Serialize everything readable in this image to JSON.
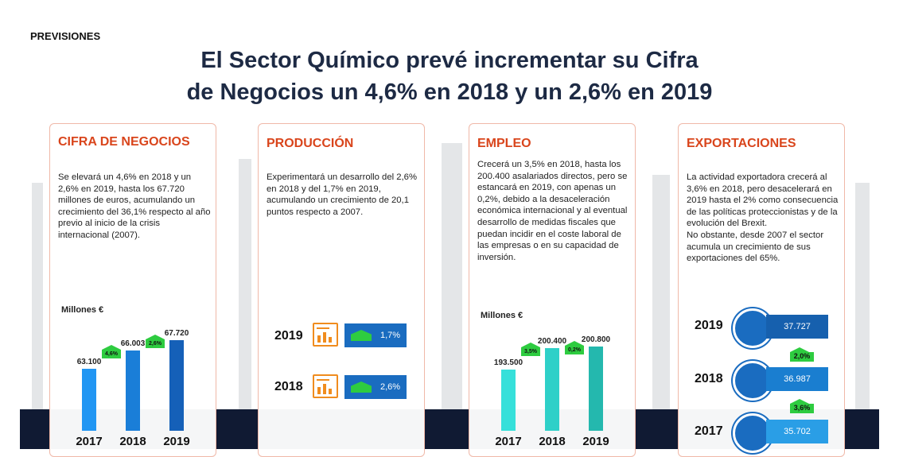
{
  "header": {
    "section": "PREVISIONES",
    "title_line1": "El Sector Químico prevé incrementar su Cifra",
    "title_line2": "de Negocios un 4,6% en 2018 y un 2,6% en 2019"
  },
  "colors": {
    "accent": "#d9451c",
    "bar_blue": "#1a6cc0",
    "bar_teal": "#2dd4c8",
    "growth_green": "#2ecc40",
    "icon_orange": "#f08c1e",
    "navy": "#101a33"
  },
  "cards": {
    "cifra": {
      "title": "CIFRA DE NEGOCIOS",
      "text": "Se elevará un 4,6% en 2018 y un 2,6% en 2019, hasta los 67.720 millones de euros, acumulando un crecimiento del 36,1% respecto al año previo al inicio de la crisis internacional (2007).",
      "unit": "Millones €"
    },
    "produccion": {
      "title": "PRODUCCIÓN",
      "text": "Experimentará un desarrollo del 2,6% en 2018 y del 1,7% en 2019, acumulando un crecimiento de 20,1 puntos respecto a 2007.",
      "rows": [
        {
          "year": "2019",
          "growth": "1,7%",
          "icon": "bar-chart-icon"
        },
        {
          "year": "2018",
          "growth": "2,6%",
          "icon": "bar-chart-icon"
        }
      ]
    },
    "empleo": {
      "title": "EMPLEO",
      "text": "Crecerá un 3,5% en 2018, hasta los 200.400 asalariados directos, pero se estancará en 2019, con apenas un 0,2%, debido a la desaceleración económica internacional y al eventual desarrollo de medidas fiscales que puedan incidir en el coste laboral de las empresas o en su capacidad de inversión.",
      "unit": "Millones €"
    },
    "exportaciones": {
      "title": "EXPORTACIONES",
      "text": "La actividad exportadora crecerá al 3,6% en 2018, pero desacelerará en 2019 hasta el 2% como consecuencia de las políticas proteccionistas y de la evolución del Brexit.\nNo obstante, desde 2007 el sector acumula un crecimiento de sus exportaciones del 65%.",
      "rows": [
        {
          "year": "2019",
          "value": "37.727",
          "icon": "globe-icon"
        },
        {
          "year": "2018",
          "value": "36.987",
          "icon": "globe-icon"
        },
        {
          "year": "2017",
          "value": "35.702",
          "icon": "globe-icon"
        }
      ],
      "growth": [
        "2,0%",
        "3,6%"
      ]
    }
  },
  "chart_data": [
    {
      "type": "bar",
      "ylabel": "Millones €",
      "categories": [
        "2017",
        "2018",
        "2019"
      ],
      "values": [
        63100,
        66003,
        67720
      ],
      "value_labels": [
        "63.100",
        "66.003",
        "67.720"
      ],
      "growth_labels": [
        "4,6%",
        "2,6%"
      ]
    },
    {
      "type": "bar",
      "ylabel": "Millones €",
      "categories": [
        "2017",
        "2018",
        "2019"
      ],
      "values": [
        193500,
        200400,
        200800
      ],
      "value_labels": [
        "193.500",
        "200.400",
        "200.800"
      ],
      "growth_labels": [
        "3,5%",
        "0,2%"
      ]
    }
  ]
}
